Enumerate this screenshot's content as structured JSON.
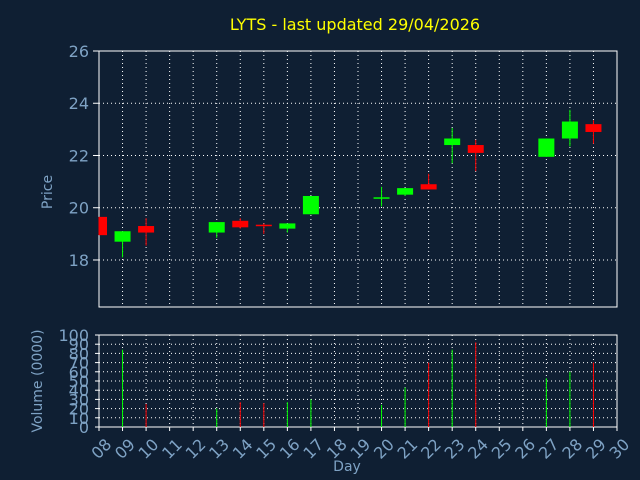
{
  "chart_data": {
    "type": "candlestick",
    "title": "LYTS - last updated 29/04/2026",
    "xlabel": "Day",
    "ylabel_price": "Price",
    "ylabel_volume": "Volume (0000)",
    "x_ticks": [
      "08",
      "09",
      "10",
      "11",
      "12",
      "13",
      "14",
      "15",
      "16",
      "17",
      "18",
      "19",
      "20",
      "21",
      "22",
      "23",
      "24",
      "25",
      "26",
      "27",
      "28",
      "29",
      "30"
    ],
    "price_ylim": [
      16.2,
      26
    ],
    "price_ticks": [
      18,
      20,
      22,
      24,
      26
    ],
    "volume_ylim": [
      0,
      100
    ],
    "volume_ticks": [
      0,
      10,
      20,
      30,
      40,
      50,
      60,
      70,
      80,
      90,
      100
    ],
    "grid": true,
    "colors": {
      "background": "#0f1f33",
      "plot_bg": "#0f1f33",
      "grid": "#ffffff",
      "axis": "#ffffff",
      "title": "#ffff00",
      "label": "#7ea2c4",
      "up": "#00ff00",
      "down": "#ff0000"
    },
    "candles": [
      {
        "day": "08",
        "open": 19.65,
        "high": 19.65,
        "low": 18.95,
        "close": 18.95,
        "volume": 0
      },
      {
        "day": "09",
        "open": 18.7,
        "high": 19.1,
        "low": 18.1,
        "close": 19.1,
        "volume": 84
      },
      {
        "day": "10",
        "open": 19.3,
        "high": 19.6,
        "low": 18.55,
        "close": 19.05,
        "volume": 25
      },
      {
        "day": "13",
        "open": 19.05,
        "high": 19.45,
        "low": 18.85,
        "close": 19.45,
        "volume": 20
      },
      {
        "day": "14",
        "open": 19.5,
        "high": 19.6,
        "low": 19.2,
        "close": 19.25,
        "volume": 27
      },
      {
        "day": "15",
        "open": 19.35,
        "high": 19.4,
        "low": 19.0,
        "close": 19.3,
        "volume": 26
      },
      {
        "day": "16",
        "open": 19.2,
        "high": 19.4,
        "low": 19.05,
        "close": 19.4,
        "volume": 27
      },
      {
        "day": "17",
        "open": 19.75,
        "high": 20.45,
        "low": 19.75,
        "close": 20.45,
        "volume": 30
      },
      {
        "day": "20",
        "open": 20.4,
        "high": 20.8,
        "low": 20.05,
        "close": 20.4,
        "volume": 24
      },
      {
        "day": "21",
        "open": 20.5,
        "high": 20.75,
        "low": 20.45,
        "close": 20.75,
        "volume": 43
      },
      {
        "day": "22",
        "open": 20.9,
        "high": 21.3,
        "low": 20.7,
        "close": 20.7,
        "volume": 70
      },
      {
        "day": "23",
        "open": 22.4,
        "high": 23.05,
        "low": 21.7,
        "close": 22.65,
        "volume": 84
      },
      {
        "day": "24",
        "open": 22.4,
        "high": 22.6,
        "low": 21.4,
        "close": 22.1,
        "volume": 92
      },
      {
        "day": "27",
        "open": 21.95,
        "high": 22.65,
        "low": 21.95,
        "close": 22.65,
        "volume": 53
      },
      {
        "day": "28",
        "open": 22.65,
        "high": 23.75,
        "low": 22.35,
        "close": 23.3,
        "volume": 60
      },
      {
        "day": "29",
        "open": 23.2,
        "high": 23.35,
        "low": 22.45,
        "close": 22.9,
        "volume": 70
      }
    ]
  }
}
